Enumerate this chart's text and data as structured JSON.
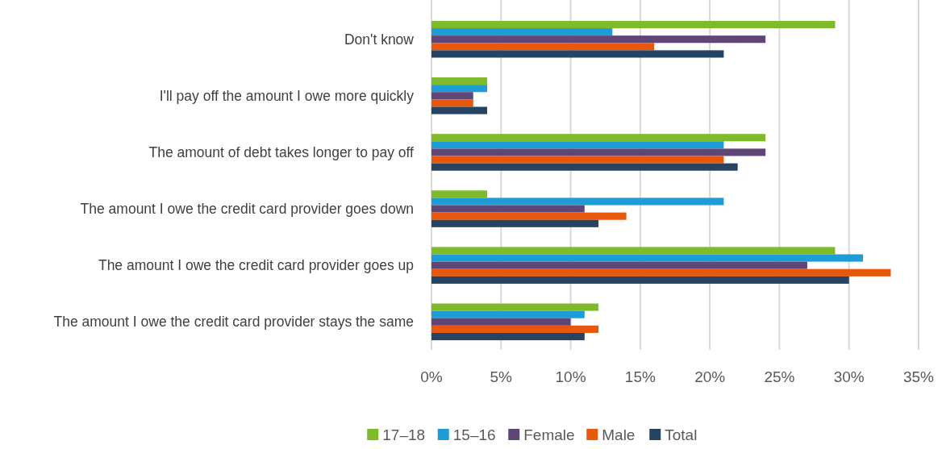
{
  "chart_data": {
    "type": "bar",
    "orientation": "horizontal",
    "categories": [
      "Don't know",
      "I'll pay off the amount I owe more quickly",
      "The amount of debt takes longer to pay off",
      "The amount I owe the credit card provider goes down",
      "The amount I owe the credit card provider goes up",
      "The amount I owe the credit card provider stays the same"
    ],
    "series": [
      {
        "name": "17–18",
        "color": "#7fba2a",
        "values": [
          29,
          4,
          24,
          4,
          29,
          12
        ]
      },
      {
        "name": "15–16",
        "color": "#1e9cd7",
        "values": [
          13,
          4,
          21,
          21,
          31,
          11
        ]
      },
      {
        "name": "Female",
        "color": "#5f4677",
        "values": [
          24,
          3,
          24,
          11,
          27,
          10
        ]
      },
      {
        "name": "Male",
        "color": "#e8580c",
        "values": [
          16,
          3,
          21,
          14,
          33,
          12
        ]
      },
      {
        "name": "Total",
        "color": "#264461",
        "values": [
          21,
          4,
          22,
          12,
          30,
          11
        ]
      }
    ],
    "xlim": [
      0,
      35
    ],
    "xticks": [
      {
        "value": 0,
        "label": "0%"
      },
      {
        "value": 5,
        "label": "5%"
      },
      {
        "value": 10,
        "label": "10%"
      },
      {
        "value": 15,
        "label": "15%"
      },
      {
        "value": 20,
        "label": "20%"
      },
      {
        "value": 25,
        "label": "25%"
      },
      {
        "value": 30,
        "label": "30%"
      },
      {
        "value": 35,
        "label": "35%"
      }
    ],
    "grid": "x",
    "legend": "bottom"
  }
}
